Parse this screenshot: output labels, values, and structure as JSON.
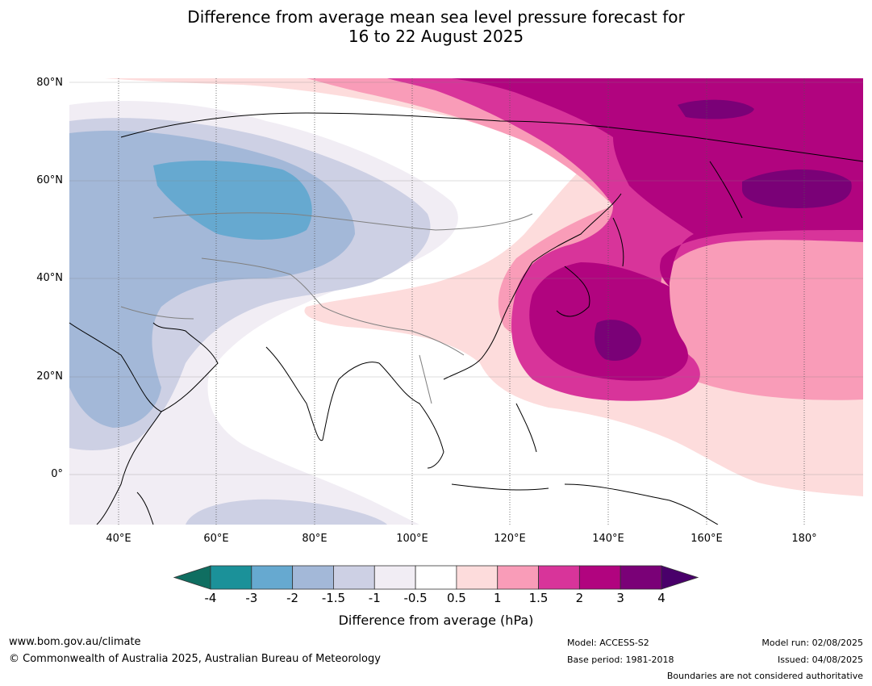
{
  "title": {
    "line1": "Difference from average mean sea level pressure forecast for",
    "line2": "16 to 22 August 2025"
  },
  "map": {
    "lat_labels": [
      "80°N",
      "60°N",
      "40°N",
      "20°N",
      "0°"
    ],
    "lon_labels": [
      "40°E",
      "60°E",
      "80°E",
      "100°E",
      "120°E",
      "140°E",
      "160°E",
      "180°"
    ],
    "extent": {
      "lon_min": 30,
      "lon_max": 192,
      "lat_min": -10,
      "lat_max": 80
    }
  },
  "legend": {
    "title": "Difference from average (hPa)",
    "ticks": [
      "-4",
      "-3",
      "-2",
      "-1.5",
      "-1",
      "-0.5",
      "0.5",
      "1",
      "1.5",
      "2",
      "3",
      "4"
    ],
    "colors": [
      "#0f6e61",
      "#1b9199",
      "#66a9d0",
      "#a3b8d8",
      "#cdd0e4",
      "#f1edf4",
      "#ffffff",
      "#fddcdc",
      "#f99cb8",
      "#d8349a",
      "#b1047f",
      "#7a0177",
      "#49006a"
    ]
  },
  "footer": {
    "url": "www.bom.gov.au/climate",
    "copyright": "© Commonwealth of Australia 2025, Australian Bureau of Meteorology",
    "model": "Model: ACCESS-S2",
    "base_period": "Base period: 1981-2018",
    "model_run": "Model run: 02/08/2025",
    "issued": "Issued: 04/08/2025",
    "disclaimer": "Boundaries are not considered authoritative"
  }
}
